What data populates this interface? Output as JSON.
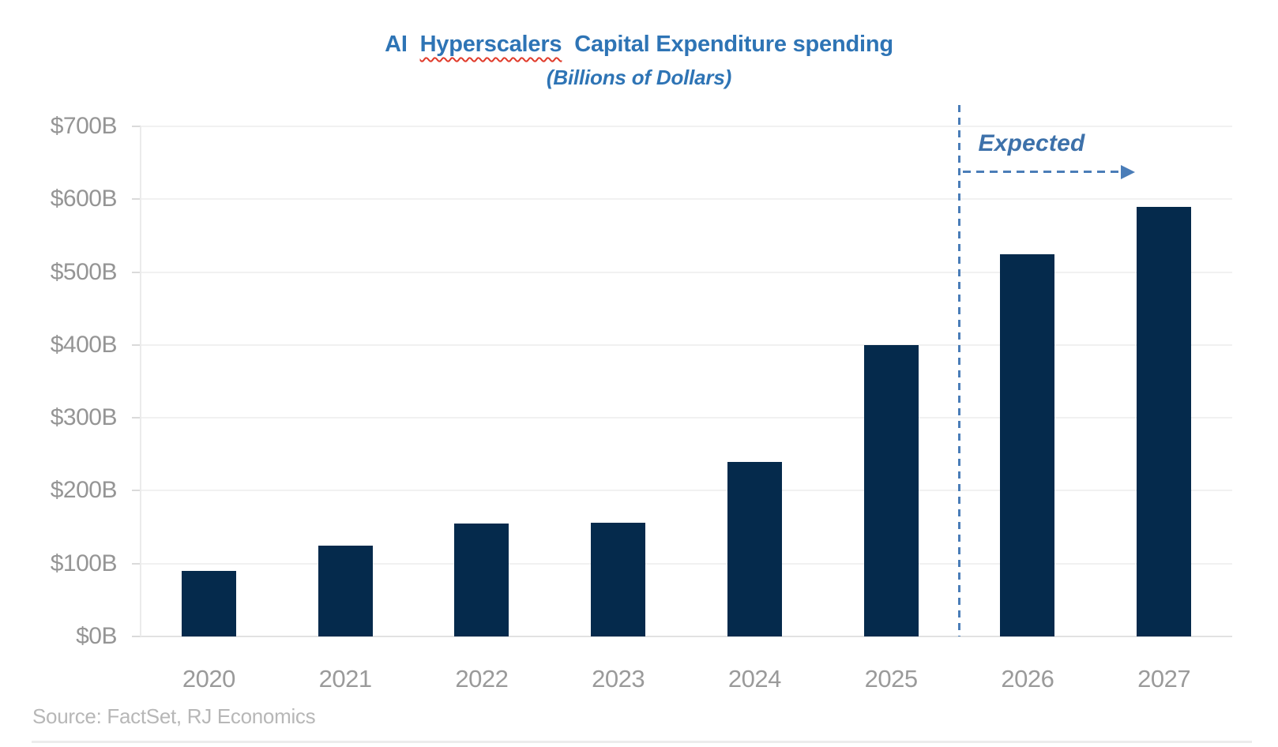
{
  "page": {
    "title_part1": "AI",
    "title_misspelled": "Hyperscalers",
    "title_part2": "Capital Expenditure spending",
    "subtitle": "(Billions of Dollars)",
    "source": "Source: FactSet, RJ Economics"
  },
  "colors": {
    "title_blue": "#2e74b5",
    "bar_navy": "#052a4c",
    "annotation_blue": "#4a7db8",
    "expected_text_blue": "#3d71aa",
    "misspell_underline_red": "#e03a2a",
    "axis_label_gray": "#969696",
    "source_gray": "#b7b7b7"
  },
  "chart_data": {
    "type": "bar",
    "title": "AI Hyperscalers Capital Expenditure spending",
    "subtitle": "(Billions of Dollars)",
    "unit": "Billions of US Dollars",
    "categories": [
      "2020",
      "2021",
      "2022",
      "2023",
      "2024",
      "2025",
      "2026",
      "2027"
    ],
    "values": [
      90,
      125,
      155,
      156,
      240,
      400,
      525,
      590
    ],
    "ylim": [
      0,
      700
    ],
    "ytick_step": 100,
    "ytick_labels": [
      "$0B",
      "$100B",
      "$200B",
      "$300B",
      "$400B",
      "$500B",
      "$600B",
      "$700B"
    ],
    "grid": true,
    "legend": "none",
    "annotation": {
      "label": "Expected",
      "divider_after": "2025",
      "applies_to": [
        "2026",
        "2027"
      ]
    }
  }
}
